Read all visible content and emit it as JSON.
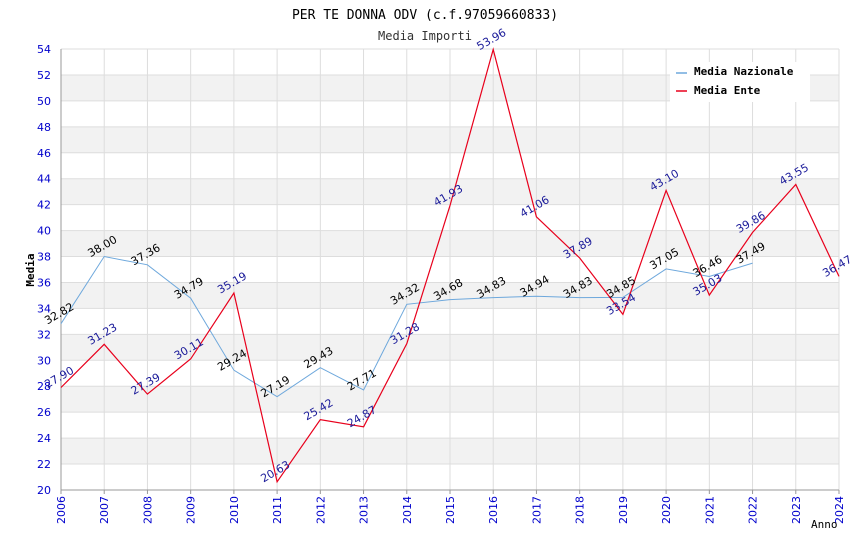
{
  "chart_data": {
    "type": "line",
    "title": "PER TE DONNA ODV (c.f.97059660833)",
    "subtitle": "Media Importi",
    "xlabel": "Anno",
    "ylabel": "Media",
    "xlim": [
      2006,
      2024
    ],
    "ylim": [
      20,
      54
    ],
    "y_ticks": [
      20,
      22,
      24,
      26,
      28,
      30,
      32,
      34,
      36,
      38,
      40,
      42,
      44,
      46,
      48,
      50,
      52,
      54
    ],
    "x_ticks": [
      2006,
      2007,
      2008,
      2009,
      2010,
      2011,
      2012,
      2013,
      2014,
      2015,
      2016,
      2017,
      2018,
      2019,
      2020,
      2021,
      2022,
      2023,
      2024
    ],
    "grid": true,
    "legend_position": "top-right",
    "series": [
      {
        "name": "Media Nazionale",
        "color": "#6ea8dc",
        "label_color": "#000000",
        "x": [
          2006,
          2007,
          2008,
          2009,
          2010,
          2011,
          2012,
          2013,
          2014,
          2015,
          2016,
          2017,
          2018,
          2019,
          2020,
          2021,
          2022
        ],
        "values": [
          32.82,
          38.0,
          37.36,
          34.79,
          29.24,
          27.19,
          29.43,
          27.71,
          34.32,
          34.68,
          34.83,
          34.94,
          34.83,
          34.85,
          37.05,
          36.46,
          37.49
        ],
        "labels": [
          "32.82",
          "38.00",
          "37.36",
          "34.79",
          "29.24",
          "27.19",
          "29.43",
          "27.71",
          "34.32",
          "34.68",
          "34.83",
          "34.94",
          "34.83",
          "34.85",
          "37.05",
          "36.46",
          "37.49"
        ]
      },
      {
        "name": "Media Ente",
        "color": "#e8001c",
        "label_color": "#1a1a99",
        "x": [
          2006,
          2007,
          2008,
          2009,
          2010,
          2011,
          2012,
          2013,
          2014,
          2015,
          2016,
          2017,
          2018,
          2019,
          2020,
          2021,
          2022,
          2023,
          2024
        ],
        "values": [
          27.9,
          31.23,
          27.39,
          30.11,
          35.19,
          20.63,
          25.42,
          24.87,
          31.28,
          41.93,
          53.96,
          41.06,
          37.89,
          33.54,
          43.1,
          35.03,
          39.86,
          43.55,
          36.47
        ],
        "labels": [
          "27.90",
          "31.23",
          "27.39",
          "30.11",
          "35.19",
          "20.63",
          "25.42",
          "24.87",
          "31.28",
          "41.93",
          "53.96",
          "41.06",
          "37.89",
          "33.54",
          "43.10",
          "35.03",
          "39.86",
          "43.55",
          "36.47"
        ]
      }
    ]
  }
}
